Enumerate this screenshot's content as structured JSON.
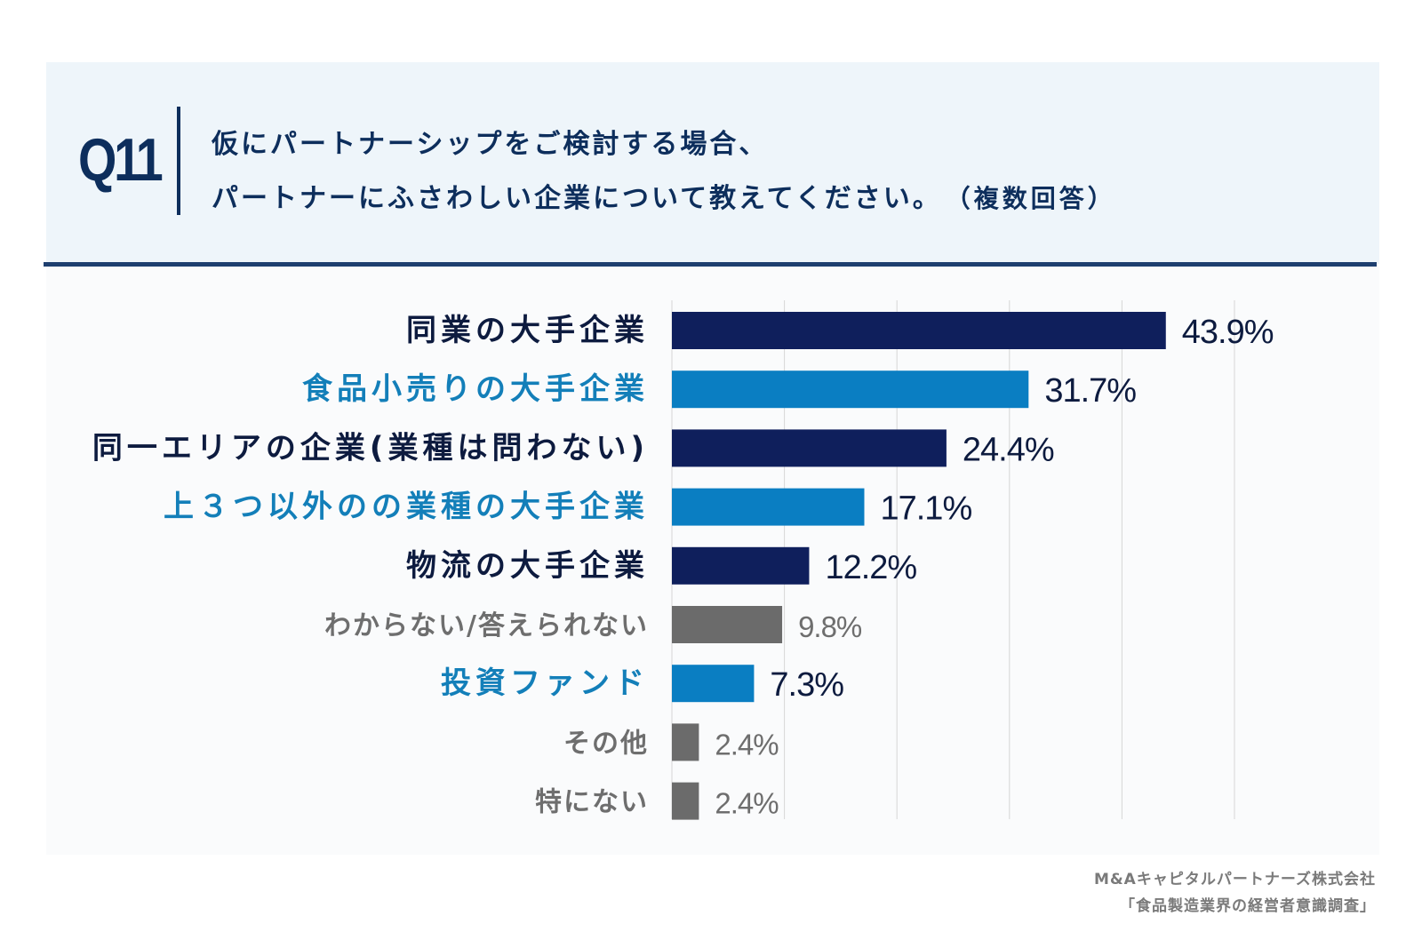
{
  "header": {
    "q_number": "Q11",
    "question_line1": "仮にパートナーシップをご検討する場合、",
    "question_line2": "パートナーにふさわしい企業について教えてください。",
    "question_note": "（複数回答）"
  },
  "chart_data": {
    "type": "bar",
    "orientation": "horizontal",
    "title": "仮にパートナーシップをご検討する場合、パートナーにふさわしい企業について教えてください。（複数回答）",
    "categories": [
      "同業の大手企業",
      "食品小売りの大手企業",
      "同一エリアの企業(業種は問わない)",
      "上３つ以外のの業種の大手企業",
      "物流の大手企業",
      "わからない/答えられない",
      "投資ファンド",
      "その他",
      "特にない"
    ],
    "values": [
      43.9,
      31.7,
      24.4,
      17.1,
      12.2,
      9.8,
      7.3,
      2.4,
      2.4
    ],
    "value_labels": [
      "43.9%",
      "31.7%",
      "24.4%",
      "17.1%",
      "12.2%",
      "9.8%",
      "7.3%",
      "2.4%",
      "2.4%"
    ],
    "bar_colors": [
      "#0f1f5c",
      "#0a7ec2",
      "#0f1f5c",
      "#0a7ec2",
      "#0f1f5c",
      "#6b6b6b",
      "#0a7ec2",
      "#6b6b6b",
      "#6b6b6b"
    ],
    "label_colors": [
      "#0d1b3f",
      "#137fb9",
      "#0d1b3f",
      "#137fb9",
      "#0d1b3f",
      "#6e6e6e",
      "#137fb9",
      "#6e6e6e",
      "#6e6e6e"
    ],
    "value_label_colors": [
      "#0d1b3f",
      "#0d1b3f",
      "#0d1b3f",
      "#0d1b3f",
      "#0d1b3f",
      "#6e6e6e",
      "#0d1b3f",
      "#6e6e6e",
      "#6e6e6e"
    ],
    "xlim": [
      0,
      50
    ],
    "grid_step": 10,
    "grid": true,
    "xlabel": "",
    "ylabel": ""
  },
  "source": {
    "company": "M&Aキャピタルパートナーズ株式会社",
    "survey": "「食品製造業界の経営者意識調査」"
  }
}
